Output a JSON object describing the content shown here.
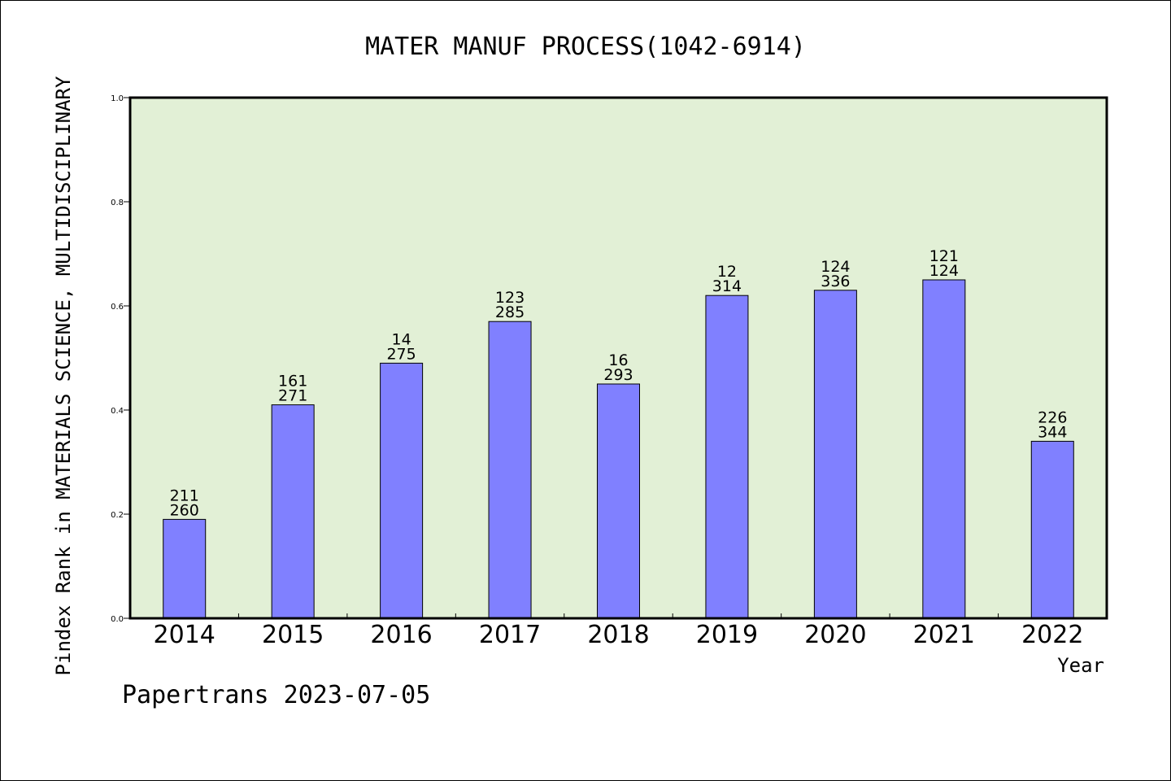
{
  "chart_data": {
    "type": "bar",
    "title": "MATER MANUF PROCESS(1042-6914)",
    "xlabel": "Year",
    "ylabel": "Pindex Rank in MATERIALS SCIENCE, MULTIDISCIPLINARY",
    "ylim": [
      0,
      1.0
    ],
    "yticks": [
      "0.0",
      "0.2",
      "0.4",
      "0.6",
      "0.8",
      "1.0"
    ],
    "categories": [
      "2014",
      "2015",
      "2016",
      "2017",
      "2018",
      "2019",
      "2020",
      "2021",
      "2022"
    ],
    "values": [
      0.19,
      0.41,
      0.49,
      0.57,
      0.45,
      0.62,
      0.63,
      0.65,
      0.34
    ],
    "labels_top": [
      "211",
      "161",
      "14",
      "123",
      "16",
      "12",
      "124",
      "121",
      "226"
    ],
    "labels_bottom": [
      "260",
      "271",
      "275",
      "285",
      "293",
      "314",
      "336",
      "124",
      "344"
    ],
    "grid": false,
    "colors": {
      "bar": "#8080ff",
      "plot_bg": "#e2f0d6",
      "axis": "#000000"
    }
  },
  "footer": "Papertrans 2023-07-05"
}
